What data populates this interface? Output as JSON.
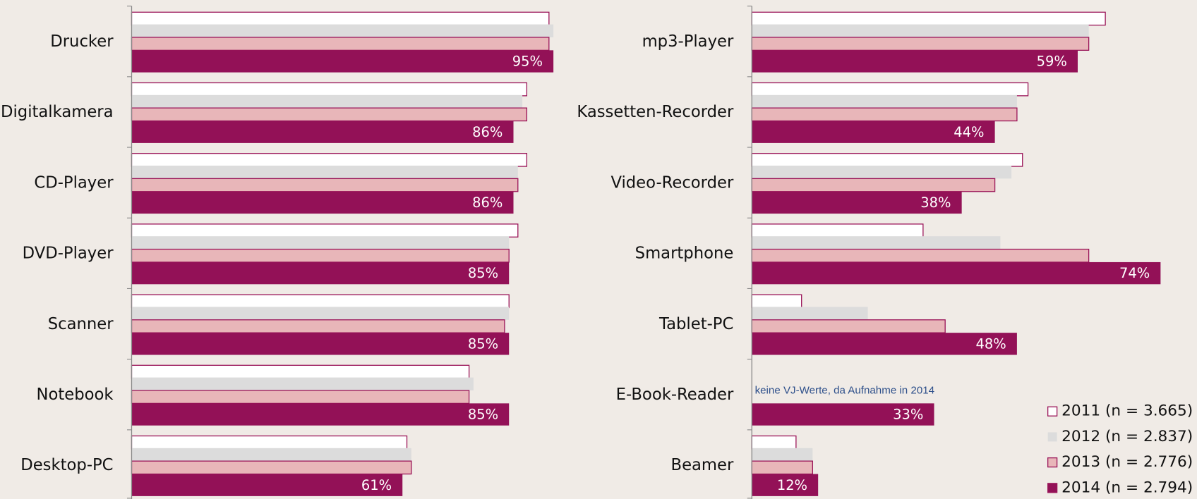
{
  "chart_data": [
    {
      "type": "bar",
      "orientation": "horizontal",
      "categories": [
        "Drucker",
        "Digitalkamera",
        "CD-Player",
        "DVD-Player",
        "Scanner",
        "Notebook",
        "Desktop-PC"
      ],
      "xlim": [
        0,
        100
      ],
      "series": [
        {
          "color": "#ffffff",
          "values": [
            94,
            89,
            89,
            87,
            85,
            76,
            62
          ]
        },
        {
          "color": "#dcdcdc",
          "values": [
            95,
            88,
            87,
            85,
            85,
            77,
            63
          ]
        },
        {
          "color": "#e8b6b9",
          "values": [
            94,
            89,
            87,
            85,
            84,
            76,
            63
          ]
        },
        {
          "color": "#931157",
          "values": [
            95,
            86,
            86,
            85,
            85,
            85,
            61
          ],
          "value_labels": [
            "95%",
            "86%",
            "86%",
            "85%",
            "85%",
            "85%",
            "61%"
          ]
        }
      ]
    },
    {
      "type": "bar",
      "orientation": "horizontal",
      "categories": [
        "mp3-Player",
        "Kassetten-Recorder",
        "Video-Recorder",
        "Smartphone",
        "Tablet-PC",
        "E-Book-Reader",
        "Beamer"
      ],
      "xlim": [
        0,
        100
      ],
      "annotation": "keine VJ-Werte, da Aufnahme in 2014",
      "series": [
        {
          "name": "2011 (n = 3.665)",
          "color": "#ffffff",
          "values": [
            64,
            50,
            49,
            31,
            9,
            null,
            8
          ]
        },
        {
          "name": "2012 (n = 2.837)",
          "color": "#dcdcdc",
          "values": [
            61,
            48,
            47,
            45,
            21,
            null,
            11
          ]
        },
        {
          "name": "2013 (n = 2.776)",
          "color": "#e8b6b9",
          "values": [
            61,
            48,
            44,
            61,
            35,
            null,
            11
          ]
        },
        {
          "name": "2014 (n = 2.794)",
          "color": "#931157",
          "values": [
            59,
            44,
            38,
            74,
            48,
            33,
            12
          ],
          "value_labels": [
            "59%",
            "44%",
            "38%",
            "74%",
            "48%",
            "33%",
            "12%"
          ]
        }
      ]
    }
  ]
}
